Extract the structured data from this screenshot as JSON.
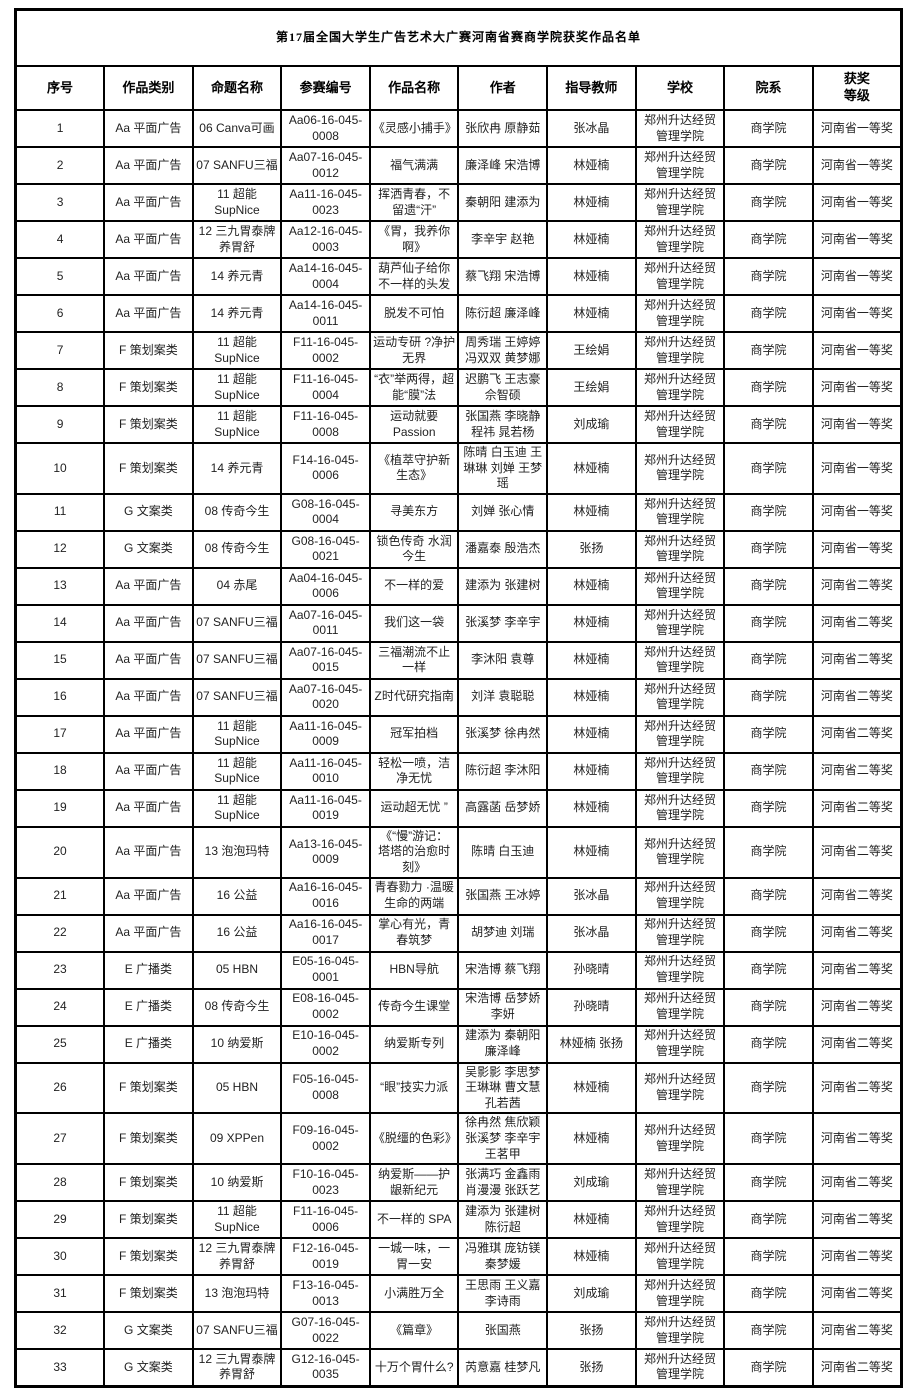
{
  "page": {
    "title": "第17届全国大学生广告艺术大广赛河南省赛商学院获奖作品名单"
  },
  "table": {
    "columns": [
      {
        "key": "index",
        "label": "序号"
      },
      {
        "key": "category",
        "label": "作品类别"
      },
      {
        "key": "topic",
        "label": "命题名称"
      },
      {
        "key": "entry_no",
        "label": "参赛编号"
      },
      {
        "key": "work_title",
        "label": "作品名称"
      },
      {
        "key": "authors",
        "label": "作者"
      },
      {
        "key": "advisor",
        "label": "指导教师"
      },
      {
        "key": "school",
        "label": "学校"
      },
      {
        "key": "department",
        "label": "院系"
      },
      {
        "key": "award",
        "label": "获奖\n等级"
      }
    ],
    "rows": [
      [
        "1",
        "Aa 平面广告",
        "06 Canva可画",
        "Aa06-16-045-0008",
        "《灵感小捕手》",
        "张欣冉 原静茹",
        "张冰晶",
        "郑州升达经贸管理学院",
        "商学院",
        "河南省一等奖"
      ],
      [
        "2",
        "Aa 平面广告",
        "07 SANFU三福",
        "Aa07-16-045-0012",
        "福气满满",
        "廉泽峰 宋浩博",
        "林娅楠",
        "郑州升达经贸管理学院",
        "商学院",
        "河南省一等奖"
      ],
      [
        "3",
        "Aa 平面广告",
        "11 超能SupNice",
        "Aa11-16-045-0023",
        "挥洒青春，不留遗“汗”",
        "秦朝阳 建添为",
        "林娅楠",
        "郑州升达经贸管理学院",
        "商学院",
        "河南省一等奖"
      ],
      [
        "4",
        "Aa 平面广告",
        "12 三九胃泰牌养胃舒",
        "Aa12-16-045-0003",
        "《胃，我养你啊》",
        "李辛宇 赵艳",
        "林娅楠",
        "郑州升达经贸管理学院",
        "商学院",
        "河南省一等奖"
      ],
      [
        "5",
        "Aa 平面广告",
        "14 养元青",
        "Aa14-16-045-0004",
        "葫芦仙子给你不一样的头发",
        "蔡飞翔 宋浩博",
        "林娅楠",
        "郑州升达经贸管理学院",
        "商学院",
        "河南省一等奖"
      ],
      [
        "6",
        "Aa 平面广告",
        "14 养元青",
        "Aa14-16-045-0011",
        "脱发不可怕",
        "陈衍超 廉泽峰",
        "林娅楠",
        "郑州升达经贸管理学院",
        "商学院",
        "河南省一等奖"
      ],
      [
        "7",
        "F 策划案类",
        "11 超能SupNice",
        "F11-16-045-0002",
        "运动专研 ?净护无界",
        "周秀瑞 王婷婷 冯双双 黄梦娜",
        "王绘娟",
        "郑州升达经贸管理学院",
        "商学院",
        "河南省一等奖"
      ],
      [
        "8",
        "F 策划案类",
        "11 超能SupNice",
        "F11-16-045-0004",
        "“衣”举两得，超能“膜”法",
        "迟鹏飞 王志豪 佘智硕",
        "王绘娟",
        "郑州升达经贸管理学院",
        "商学院",
        "河南省一等奖"
      ],
      [
        "9",
        "F 策划案类",
        "11 超能SupNice",
        "F11-16-045-0008",
        "运动就要 Passion",
        "张国燕 李晓静 程祎 晁若杨",
        "刘成瑜",
        "郑州升达经贸管理学院",
        "商学院",
        "河南省一等奖"
      ],
      [
        "10",
        "F 策划案类",
        "14 养元青",
        "F14-16-045-0006",
        "《植萃守护新生态》",
        "陈晴 白玉迪 王琳琳 刘婵 王梦瑶",
        "林娅楠",
        "郑州升达经贸管理学院",
        "商学院",
        "河南省一等奖"
      ],
      [
        "11",
        "G 文案类",
        "08 传奇今生",
        "G08-16-045-0004",
        "寻美东方",
        "刘婵 张心情",
        "林娅楠",
        "郑州升达经贸管理学院",
        "商学院",
        "河南省一等奖"
      ],
      [
        "12",
        "G 文案类",
        "08 传奇今生",
        "G08-16-045-0021",
        "锁色传奇 水润今生",
        "潘嘉泰 殷浩杰",
        "张扬",
        "郑州升达经贸管理学院",
        "商学院",
        "河南省一等奖"
      ],
      [
        "13",
        "Aa 平面广告",
        "04 赤尾",
        "Aa04-16-045-0006",
        "不一样的爱",
        "建添为 张建树",
        "林娅楠",
        "郑州升达经贸管理学院",
        "商学院",
        "河南省二等奖"
      ],
      [
        "14",
        "Aa 平面广告",
        "07 SANFU三福",
        "Aa07-16-045-0011",
        "我们这一袋",
        "张溪梦 李辛宇",
        "林娅楠",
        "郑州升达经贸管理学院",
        "商学院",
        "河南省二等奖"
      ],
      [
        "15",
        "Aa 平面广告",
        "07 SANFU三福",
        "Aa07-16-045-0015",
        "三福潮流不止一样",
        "李沐阳 袁尊",
        "林娅楠",
        "郑州升达经贸管理学院",
        "商学院",
        "河南省二等奖"
      ],
      [
        "16",
        "Aa 平面广告",
        "07 SANFU三福",
        "Aa07-16-045-0020",
        "Z时代研究指南",
        "刘洋 袁聪聪",
        "林娅楠",
        "郑州升达经贸管理学院",
        "商学院",
        "河南省二等奖"
      ],
      [
        "17",
        "Aa 平面广告",
        "11 超能SupNice",
        "Aa11-16-045-0009",
        "冠军拍档",
        "张溪梦 徐冉然",
        "林娅楠",
        "郑州升达经贸管理学院",
        "商学院",
        "河南省二等奖"
      ],
      [
        "18",
        "Aa 平面广告",
        "11 超能SupNice",
        "Aa11-16-045-0010",
        "轻松一喷，洁净无忧",
        "陈衍超 李沐阳",
        "林娅楠",
        "郑州升达经贸管理学院",
        "商学院",
        "河南省二等奖"
      ],
      [
        "19",
        "Aa 平面广告",
        "11 超能SupNice",
        "Aa11-16-045-0019",
        "运动超无忧 ”",
        "高露菡 岳梦娇",
        "林娅楠",
        "郑州升达经贸管理学院",
        "商学院",
        "河南省二等奖"
      ],
      [
        "20",
        "Aa 平面广告",
        "13 泡泡玛特",
        "Aa13-16-045-0009",
        "《“慢”游记： 塔塔的治愈时刻》",
        "陈晴 白玉迪",
        "林娅楠",
        "郑州升达经贸管理学院",
        "商学院",
        "河南省二等奖"
      ],
      [
        "21",
        "Aa 平面广告",
        "16 公益",
        "Aa16-16-045-0016",
        "青春勠力 ·温暖生命的两端",
        "张国燕 王冰婷",
        "张冰晶",
        "郑州升达经贸管理学院",
        "商学院",
        "河南省二等奖"
      ],
      [
        "22",
        "Aa 平面广告",
        "16 公益",
        "Aa16-16-045-0017",
        "掌心有光，青春筑梦",
        "胡梦迪 刘瑞",
        "张冰晶",
        "郑州升达经贸管理学院",
        "商学院",
        "河南省二等奖"
      ],
      [
        "23",
        "E 广播类",
        "05 HBN",
        "E05-16-045-0001",
        "HBN导航",
        "宋浩博 蔡飞翔",
        "孙晓晴",
        "郑州升达经贸管理学院",
        "商学院",
        "河南省二等奖"
      ],
      [
        "24",
        "E 广播类",
        "08 传奇今生",
        "E08-16-045-0002",
        "传奇今生课堂",
        "宋浩博 岳梦娇 李妍",
        "孙晓晴",
        "郑州升达经贸管理学院",
        "商学院",
        "河南省二等奖"
      ],
      [
        "25",
        "E 广播类",
        "10 纳爱斯",
        "E10-16-045-0002",
        "纳爱斯专列",
        "建添为 秦朝阳 廉泽峰",
        "林娅楠 张扬",
        "郑州升达经贸管理学院",
        "商学院",
        "河南省二等奖"
      ],
      [
        "26",
        "F 策划案类",
        "05 HBN",
        "F05-16-045-0008",
        "“眼”技实力派",
        "吴影影 李思梦 王琳琳 曹文慧 孔若茜",
        "林娅楠",
        "郑州升达经贸管理学院",
        "商学院",
        "河南省二等奖"
      ],
      [
        "27",
        "F 策划案类",
        "09 XPPen",
        "F09-16-045-0002",
        "《脱缰的色彩》",
        "徐冉然 焦欣颖 张溪梦 李辛宇 王茗甲",
        "林娅楠",
        "郑州升达经贸管理学院",
        "商学院",
        "河南省二等奖"
      ],
      [
        "28",
        "F 策划案类",
        "10 纳爱斯",
        "F10-16-045-0023",
        "纳爱斯——护龈新纪元",
        "张满巧 金鑫雨 肖漫漫 张跃艺",
        "刘成瑜",
        "郑州升达经贸管理学院",
        "商学院",
        "河南省二等奖"
      ],
      [
        "29",
        "F 策划案类",
        "11 超能SupNice",
        "F11-16-045-0006",
        "不一样的 SPA",
        "建添为 张建树 陈衍超",
        "林娅楠",
        "郑州升达经贸管理学院",
        "商学院",
        "河南省二等奖"
      ],
      [
        "30",
        "F 策划案类",
        "12 三九胃泰牌养胃舒",
        "F12-16-045-0019",
        "一城一味，一胃一安",
        "冯雅琪 庞钫镁 秦梦媛",
        "林娅楠",
        "郑州升达经贸管理学院",
        "商学院",
        "河南省二等奖"
      ],
      [
        "31",
        "F 策划案类",
        "13 泡泡玛特",
        "F13-16-045-0013",
        "小满胜万全",
        "王思雨 王义嘉 李诗雨",
        "刘成瑜",
        "郑州升达经贸管理学院",
        "商学院",
        "河南省二等奖"
      ],
      [
        "32",
        "G 文案类",
        "07 SANFU三福",
        "G07-16-045-0022",
        "《篇章》",
        "张国燕",
        "张扬",
        "郑州升达经贸管理学院",
        "商学院",
        "河南省二等奖"
      ],
      [
        "33",
        "G 文案类",
        "12 三九胃泰牌养胃舒",
        "G12-16-045-0035",
        "十万个胃什么?",
        "芮意嘉 桂梦凡",
        "张扬",
        "郑州升达经贸管理学院",
        "商学院",
        "河南省二等奖"
      ]
    ]
  }
}
